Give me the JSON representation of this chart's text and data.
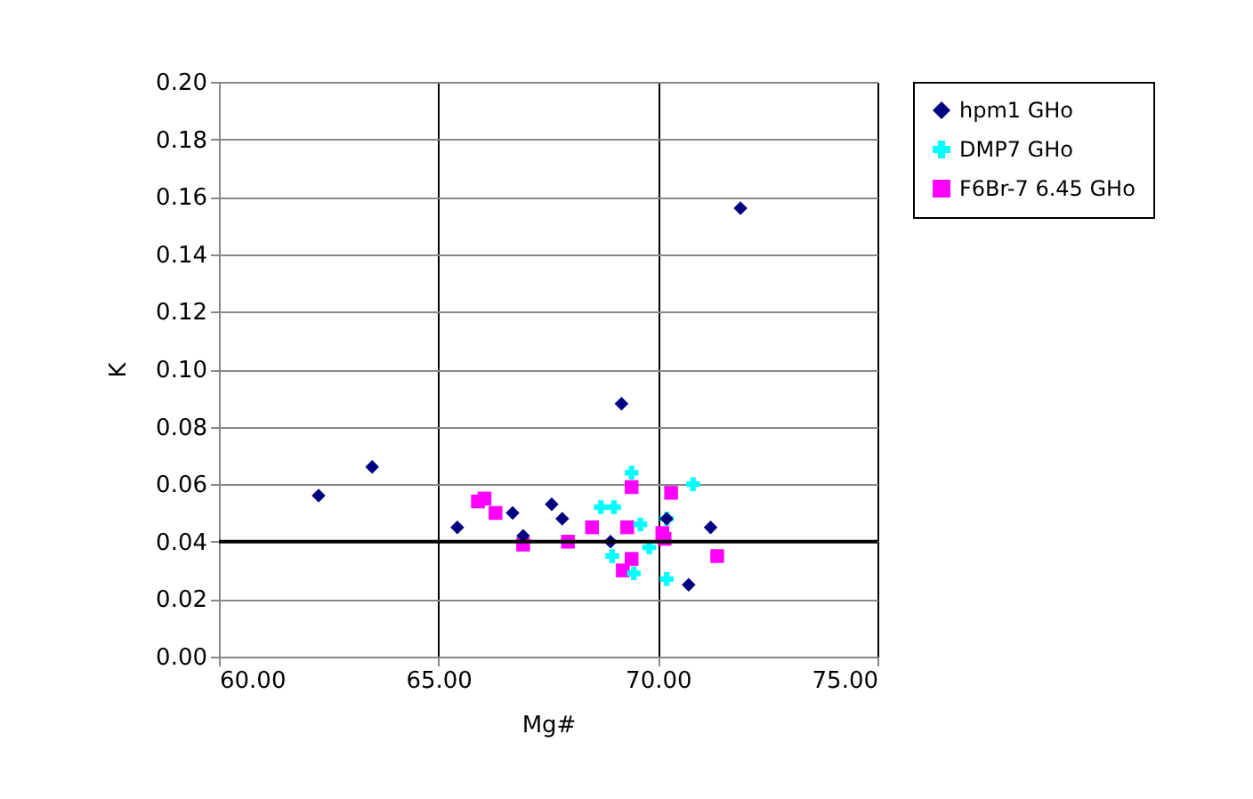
{
  "chart_data": {
    "type": "scatter",
    "xlabel": "Mg#",
    "ylabel": "K",
    "xlim": [
      60,
      75
    ],
    "ylim": [
      0,
      0.2
    ],
    "xticks": [
      {
        "value": 60,
        "label": "60.00"
      },
      {
        "value": 65,
        "label": "65.00"
      },
      {
        "value": 70,
        "label": "70.00"
      },
      {
        "value": 75,
        "label": "75.00"
      }
    ],
    "yticks": [
      {
        "value": 0,
        "label": "0.00"
      },
      {
        "value": 0.02,
        "label": "0.02"
      },
      {
        "value": 0.04,
        "label": "0.04"
      },
      {
        "value": 0.06,
        "label": "0.06"
      },
      {
        "value": 0.08,
        "label": "0.08"
      },
      {
        "value": 0.1,
        "label": "0.10"
      },
      {
        "value": 0.12,
        "label": "0.12"
      },
      {
        "value": 0.14,
        "label": "0.14"
      },
      {
        "value": 0.16,
        "label": "0.16"
      },
      {
        "value": 0.18,
        "label": "0.18"
      },
      {
        "value": 0.2,
        "label": "0.20"
      }
    ],
    "grid": true,
    "legend": "right",
    "ref_lines": [
      {
        "axis": "y",
        "value": 0.04,
        "label": null,
        "color": "#000000"
      }
    ],
    "series": [
      {
        "name": "hpm1 GHo",
        "color": "#000080",
        "marker": "diamond",
        "x": [
          62.27,
          63.49,
          65.43,
          66.69,
          66.93,
          67.58,
          67.82,
          68.92,
          69.17,
          71.88,
          70.2,
          71.2,
          70.7
        ],
        "values": [
          0.056,
          0.066,
          0.045,
          0.05,
          0.042,
          0.053,
          0.048,
          0.04,
          0.088,
          0.156,
          0.048,
          0.045,
          0.025
        ]
      },
      {
        "name": "DMP7 GHo",
        "color": "#00ffff",
        "marker": "cross",
        "x": [
          69.4,
          70.8,
          68.7,
          69.0,
          69.6,
          70.2,
          68.96,
          69.8,
          69.45,
          70.2
        ],
        "values": [
          0.064,
          0.06,
          0.052,
          0.052,
          0.046,
          0.048,
          0.035,
          0.038,
          0.029,
          0.027
        ]
      },
      {
        "name": "F6Br-7 6.45 GHo",
        "color": "#ff00ff",
        "marker": "square",
        "x": [
          65.9,
          66.05,
          66.3,
          66.93,
          67.95,
          68.5,
          69.3,
          69.4,
          70.3,
          70.1,
          70.15,
          69.4,
          69.2,
          71.35
        ],
        "values": [
          0.054,
          0.055,
          0.05,
          0.039,
          0.04,
          0.045,
          0.045,
          0.059,
          0.057,
          0.043,
          0.041,
          0.034,
          0.03,
          0.035
        ]
      }
    ]
  }
}
